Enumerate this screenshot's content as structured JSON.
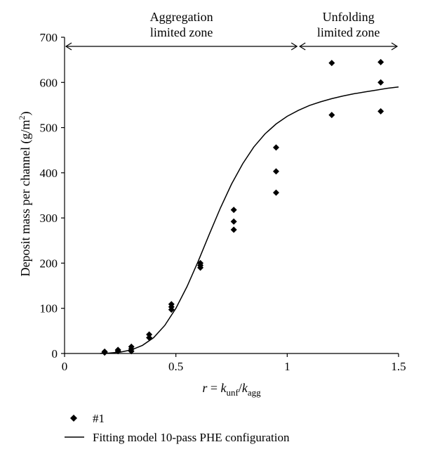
{
  "chart_data": {
    "type": "scatter",
    "title": "",
    "xlabel": "r = k_unf/k_agg",
    "xlabel_parts": {
      "var": "r",
      "eq": " = ",
      "k1": "k",
      "sub1": "unf",
      "slash": "/",
      "k2": "k",
      "sub2": "agg"
    },
    "ylabel": "Deposit mass per channel (g/m2)",
    "ylabel_parts": {
      "main": "Deposit mass per channel (g/m",
      "sup": "2",
      "close": ")"
    },
    "xlim": [
      0,
      1.5
    ],
    "ylim": [
      0,
      700
    ],
    "xticks": [
      0,
      0.5,
      1,
      1.5
    ],
    "xtick_labels": [
      "0",
      "0.5",
      "1",
      "1.5"
    ],
    "yticks": [
      0,
      100,
      200,
      300,
      400,
      500,
      600,
      700
    ],
    "ytick_labels": [
      "0",
      "100",
      "200",
      "300",
      "400",
      "500",
      "600",
      "700"
    ],
    "grid": false,
    "legend_position": "bottom-left, below plot",
    "annotations": {
      "zone1": {
        "line1": "Aggregation",
        "line2": "limited zone",
        "x_range": [
          0,
          1.05
        ]
      },
      "zone2": {
        "line1": "Unfolding",
        "line2": "limited zone",
        "x_range": [
          1.05,
          1.5
        ]
      }
    },
    "series": [
      {
        "name": "#1",
        "kind": "scatter",
        "marker": "diamond",
        "color": "#000000",
        "points": [
          [
            0.18,
            2
          ],
          [
            0.18,
            4
          ],
          [
            0.24,
            5
          ],
          [
            0.24,
            8
          ],
          [
            0.3,
            5
          ],
          [
            0.3,
            10
          ],
          [
            0.3,
            15
          ],
          [
            0.38,
            35
          ],
          [
            0.38,
            42
          ],
          [
            0.48,
            97
          ],
          [
            0.48,
            103
          ],
          [
            0.48,
            109
          ],
          [
            0.61,
            190
          ],
          [
            0.61,
            195
          ],
          [
            0.61,
            200
          ],
          [
            0.76,
            274
          ],
          [
            0.76,
            292
          ],
          [
            0.76,
            318
          ],
          [
            0.95,
            356
          ],
          [
            0.95,
            403
          ],
          [
            0.95,
            456
          ],
          [
            1.2,
            528
          ],
          [
            1.2,
            643
          ],
          [
            1.42,
            536
          ],
          [
            1.42,
            600
          ],
          [
            1.42,
            645
          ]
        ]
      },
      {
        "name": "Fitting model 10-pass PHE configuration",
        "kind": "line",
        "color": "#000000",
        "points": [
          [
            0.16,
            0
          ],
          [
            0.2,
            1
          ],
          [
            0.25,
            3
          ],
          [
            0.3,
            8
          ],
          [
            0.35,
            18
          ],
          [
            0.4,
            35
          ],
          [
            0.45,
            62
          ],
          [
            0.5,
            100
          ],
          [
            0.55,
            148
          ],
          [
            0.6,
            204
          ],
          [
            0.65,
            264
          ],
          [
            0.7,
            322
          ],
          [
            0.75,
            375
          ],
          [
            0.8,
            420
          ],
          [
            0.85,
            457
          ],
          [
            0.9,
            486
          ],
          [
            0.95,
            508
          ],
          [
            1.0,
            525
          ],
          [
            1.05,
            538
          ],
          [
            1.1,
            549
          ],
          [
            1.15,
            557
          ],
          [
            1.2,
            564
          ],
          [
            1.25,
            570
          ],
          [
            1.3,
            575
          ],
          [
            1.35,
            579
          ],
          [
            1.4,
            583
          ],
          [
            1.45,
            587
          ],
          [
            1.5,
            590
          ]
        ]
      }
    ]
  }
}
